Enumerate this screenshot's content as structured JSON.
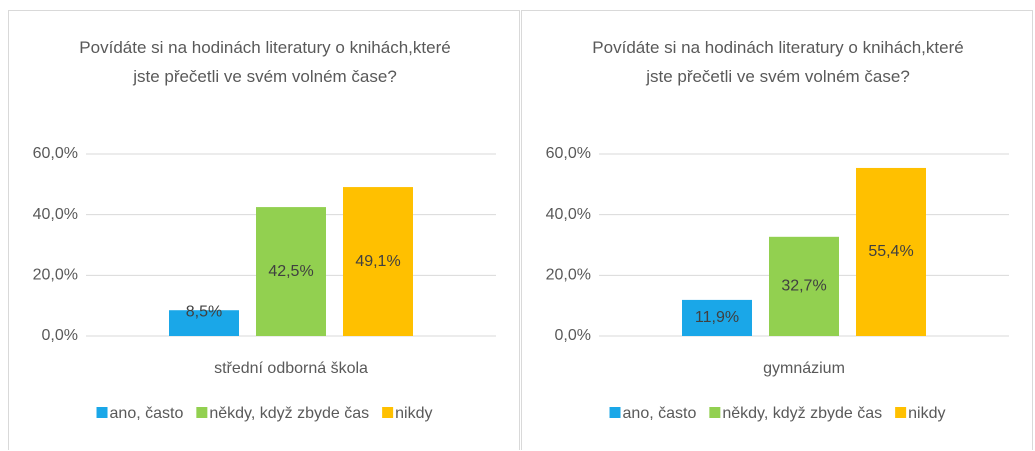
{
  "chart_data": [
    {
      "type": "bar",
      "title": "Povídáte si na hodinách literatury o knihách,které jste přečetli ve svém volném čase?",
      "categories": [
        "střední odborná škola"
      ],
      "series": [
        {
          "name": "ano, často",
          "color": "#1aa7e8",
          "values": [
            8.5
          ],
          "value_labels": [
            "8,5%"
          ]
        },
        {
          "name": "někdy, když zbyde čas",
          "color": "#92d050",
          "values": [
            42.5
          ],
          "value_labels": [
            "42,5%"
          ]
        },
        {
          "name": "nikdy",
          "color": "#ffc000",
          "values": [
            49.1
          ],
          "value_labels": [
            "49,1%"
          ]
        }
      ],
      "ylim": [
        0,
        60
      ],
      "yticks": [
        {
          "value": 0,
          "label": "0,0%"
        },
        {
          "value": 20,
          "label": "20,0%"
        },
        {
          "value": 40,
          "label": "40,0%"
        },
        {
          "value": 60,
          "label": "60,0%"
        }
      ],
      "grid": true,
      "legend": "bottom"
    },
    {
      "type": "bar",
      "title": "Povídáte si na hodinách literatury o knihách,které jste přečetli ve svém volném čase?",
      "categories": [
        "gymnázium"
      ],
      "series": [
        {
          "name": "ano, často",
          "color": "#1aa7e8",
          "values": [
            11.9
          ],
          "value_labels": [
            "11,9%"
          ]
        },
        {
          "name": "někdy, když zbyde čas",
          "color": "#92d050",
          "values": [
            32.7
          ],
          "value_labels": [
            "32,7%"
          ]
        },
        {
          "name": "nikdy",
          "color": "#ffc000",
          "values": [
            55.4
          ],
          "value_labels": [
            "55,4%"
          ]
        }
      ],
      "ylim": [
        0,
        60
      ],
      "yticks": [
        {
          "value": 0,
          "label": "0,0%"
        },
        {
          "value": 20,
          "label": "20,0%"
        },
        {
          "value": 40,
          "label": "40,0%"
        },
        {
          "value": 60,
          "label": "60,0%"
        }
      ],
      "grid": true,
      "legend": "bottom"
    }
  ]
}
